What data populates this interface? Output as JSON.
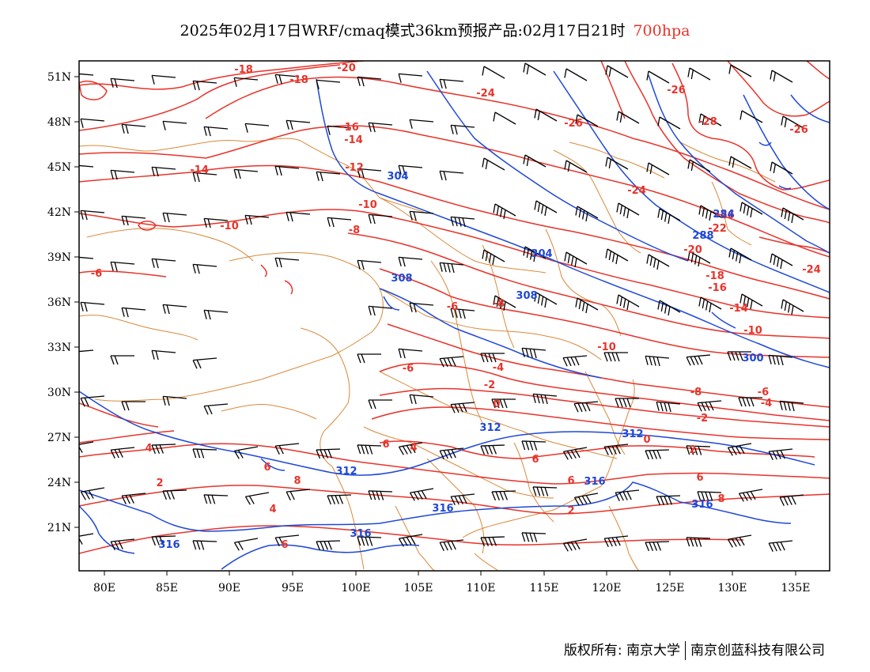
{
  "header": {
    "title": "2025年02月17日WRF/cmaq模式36km预报产品:02月17日21时",
    "level": "700hpa"
  },
  "map": {
    "lon_ticks": [
      "80E",
      "85E",
      "90E",
      "95E",
      "100E",
      "105E",
      "110E",
      "115E",
      "120E",
      "125E",
      "130E",
      "135E"
    ],
    "lat_ticks": [
      "51N",
      "48N",
      "45N",
      "42N",
      "39N",
      "36N",
      "33N",
      "30N",
      "27N",
      "24N",
      "21N"
    ],
    "colors": {
      "temperature": "#e8332a",
      "geopotential": "#1f48d8",
      "boundary": "#d98a3a",
      "wind": "#000000"
    },
    "temperature_labels": [
      "-18",
      "-18",
      "-20",
      "-24",
      "-26",
      "-26",
      "-28",
      "-26",
      "-16",
      "-14",
      "-14",
      "-12",
      "-10",
      "-10",
      "-8",
      "-6",
      "-6",
      "-8",
      "-24",
      "-26",
      "-22",
      "-20",
      "-18",
      "-16",
      "-14",
      "-24",
      "-10",
      "-10",
      "-6",
      "-4",
      "-2",
      "0",
      "-8",
      "-6",
      "-4",
      "-2",
      "0",
      "2",
      "4",
      "6",
      "8",
      "2",
      "4",
      "6",
      "6",
      "6",
      "8",
      "4",
      "6",
      "6",
      "2"
    ],
    "geopotential_labels": [
      "304",
      "304",
      "308",
      "308",
      "284",
      "288",
      "300",
      "312",
      "312",
      "312",
      "316",
      "316",
      "316",
      "316",
      "316"
    ]
  },
  "footer": {
    "copyright_label": "版权所有:",
    "org1": "南京大学",
    "org2": "南京创蓝科技有限公司"
  }
}
